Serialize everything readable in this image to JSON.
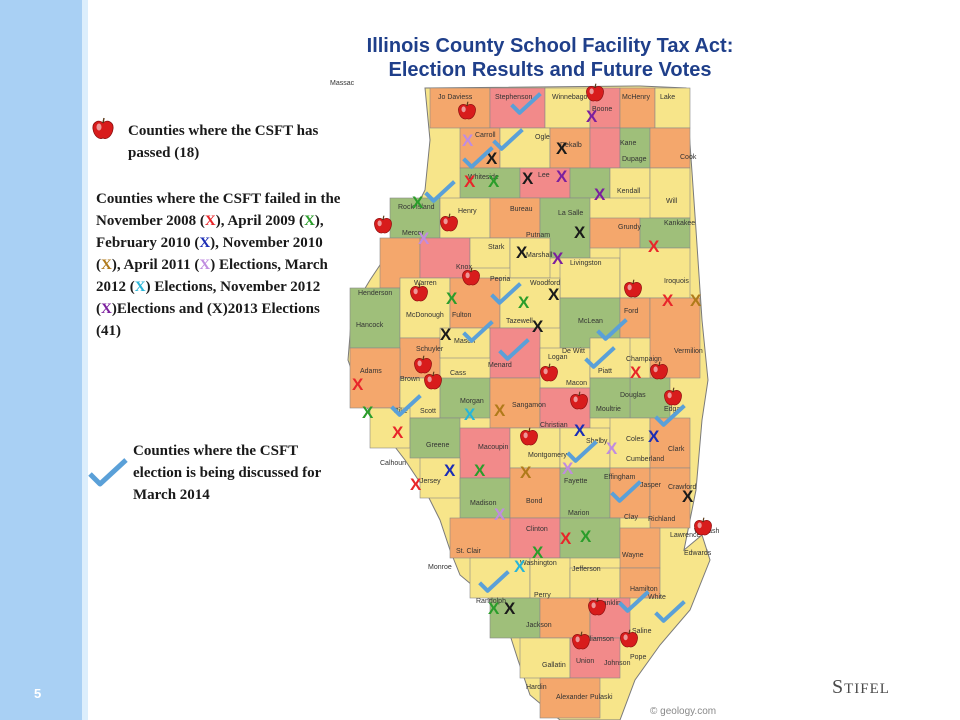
{
  "slide": {
    "title_line1": "Illinois County School Facility Tax Act:",
    "title_line2": "Election Results and Future Votes",
    "page_number": "5",
    "brand_first": "S",
    "brand_rest": "TIFEL",
    "credit": "© geology.com"
  },
  "legend": {
    "passed_text": "Counties where the CSFT has passed (18)",
    "failed_intro": "Counties where the CSFT failed in the November 2008 (",
    "failed_parts": [
      {
        "mark": "X",
        "color": "#e8262a",
        "suffix": "), April 2009 ("
      },
      {
        "mark": "X",
        "color": "#2b9d2b",
        "suffix": "), February 2010 ("
      },
      {
        "mark": "X",
        "color": "#1b2db5",
        "suffix": "), November 2010 ("
      },
      {
        "mark": "X",
        "color": "#b07a1a",
        "suffix": "), April 2011 ("
      },
      {
        "mark": "X",
        "color": "#c08ce0",
        "suffix": ") Elections, March 2012 ("
      },
      {
        "mark": "X",
        "color": "#28b5d8",
        "suffix": ") Elections, November 2012 ("
      },
      {
        "mark": "X",
        "color": "#7b1f9e",
        "suffix": ")Elections and ("
      },
      {
        "mark": "X",
        "color": "#1a1a1a",
        "suffix": ")2013 Elections (41)"
      }
    ],
    "discussed_text": "Counties where the CSFT election is being discussed for March 2014"
  },
  "colors": {
    "strip": "#a9d0f4",
    "title": "#1f3f8a",
    "apple": "#d81c1c",
    "check": "#5aa0d8"
  },
  "counties": [
    "Jo Daviess",
    "Stephenson",
    "Winnebago",
    "Boone",
    "McHenry",
    "Lake",
    "Carroll",
    "Ogle",
    "Dekalb",
    "Kane",
    "Dupage",
    "Cook",
    "Whiteside",
    "Lee",
    "Kendall",
    "Will",
    "Rock Island",
    "Henry",
    "Bureau",
    "La Salle",
    "Grundy",
    "Kankakee",
    "Mercer",
    "Putnam",
    "Stark",
    "Marshall",
    "Livingston",
    "Iroquois",
    "Henderson",
    "Knox",
    "Peoria",
    "Woodford",
    "Warren",
    "Ford",
    "Hancock",
    "McDonough",
    "Fulton",
    "Tazewell",
    "McLean",
    "Vermilion",
    "Schuyler",
    "Mason",
    "Champaign",
    "Adams",
    "Brown",
    "Cass",
    "Menard",
    "Logan",
    "De Witt",
    "Piatt",
    "Morgan",
    "Sangamon",
    "Macon",
    "Douglas",
    "Edgar",
    "Pike",
    "Scott",
    "Christian",
    "Moultrie",
    "Coles",
    "Clark",
    "Greene",
    "Macoupin",
    "Montgomery",
    "Shelby",
    "Cumberland",
    "Calhoun",
    "Jersey",
    "Fayette",
    "Effingham",
    "Jasper",
    "Crawford",
    "Bond",
    "Madison",
    "Marion",
    "Clay",
    "Richland",
    "Lawrence",
    "St. Clair",
    "Clinton",
    "Wayne",
    "Edwards",
    "Wabash",
    "Monroe",
    "Washington",
    "Jefferson",
    "Hamilton",
    "White",
    "Randolph",
    "Perry",
    "Franklin",
    "Jackson",
    "Williamson",
    "Saline",
    "Gallatin",
    "Union",
    "Johnson",
    "Pope",
    "Hardin",
    "Alexander",
    "Pulaski",
    "Massac"
  ],
  "markers": {
    "x_letter": "X",
    "apple_name": "apple-marker",
    "check_name": "check-marker"
  }
}
